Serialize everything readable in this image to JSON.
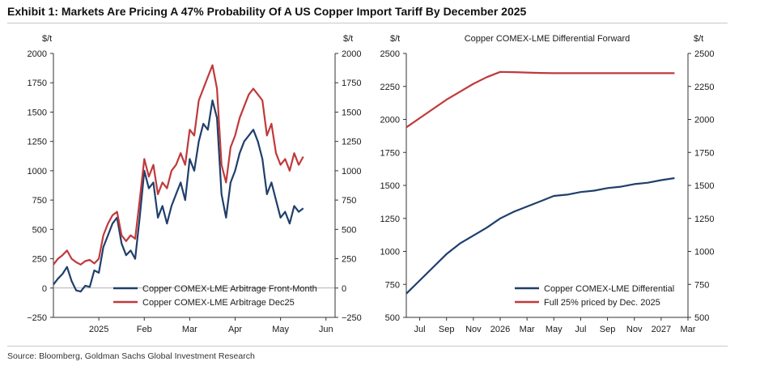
{
  "header": {
    "title": "Exhibit 1: Markets Are Pricing A 47% Probability Of A US Copper Import Tariff By December 2025"
  },
  "footer": {
    "source": "Source: Bloomberg, Goldman Sachs Global Investment Research"
  },
  "chart_data": [
    {
      "type": "line",
      "title": "",
      "ylabel_left": "$/t",
      "ylabel_right": "$/t",
      "ylim": [
        -250,
        2000
      ],
      "yticks": [
        -250,
        0,
        250,
        500,
        750,
        1000,
        1250,
        1500,
        1750,
        2000
      ],
      "xticks": [
        "2025",
        "Feb",
        "Mar",
        "Apr",
        "May",
        "Jun"
      ],
      "x_range": [
        0,
        6.2
      ],
      "xtick_positions": [
        1,
        2,
        3,
        4,
        5,
        6
      ],
      "grid": false,
      "legend_position": "bottom-right",
      "series": [
        {
          "name": "Copper COMEX-LME Arbitrage Front-Month",
          "color": "#1f3f6b",
          "x": [
            0,
            0.1,
            0.2,
            0.3,
            0.4,
            0.5,
            0.6,
            0.7,
            0.8,
            0.9,
            1.0,
            1.1,
            1.2,
            1.3,
            1.4,
            1.5,
            1.6,
            1.7,
            1.8,
            1.9,
            2.0,
            2.1,
            2.2,
            2.3,
            2.4,
            2.5,
            2.6,
            2.7,
            2.8,
            2.9,
            3.0,
            3.1,
            3.2,
            3.3,
            3.4,
            3.5,
            3.6,
            3.7,
            3.8,
            3.9,
            4.0,
            4.1,
            4.2,
            4.3,
            4.4,
            4.5,
            4.6,
            4.7,
            4.8,
            4.9,
            5.0,
            5.1,
            5.2,
            5.3,
            5.4,
            5.5
          ],
          "y": [
            30,
            80,
            120,
            180,
            60,
            -20,
            -30,
            20,
            10,
            150,
            130,
            350,
            450,
            550,
            600,
            380,
            280,
            320,
            250,
            600,
            1000,
            850,
            900,
            600,
            700,
            550,
            700,
            800,
            900,
            750,
            1100,
            1000,
            1250,
            1400,
            1350,
            1600,
            1450,
            800,
            600,
            900,
            1000,
            1150,
            1250,
            1300,
            1350,
            1250,
            1100,
            800,
            900,
            750,
            600,
            650,
            550,
            700,
            650,
            680
          ]
        },
        {
          "name": "Copper COMEX-LME Arbitrage Dec25",
          "color": "#c0393b",
          "x": [
            0,
            0.1,
            0.2,
            0.3,
            0.4,
            0.5,
            0.6,
            0.7,
            0.8,
            0.9,
            1.0,
            1.1,
            1.2,
            1.3,
            1.4,
            1.5,
            1.6,
            1.7,
            1.8,
            1.9,
            2.0,
            2.1,
            2.2,
            2.3,
            2.4,
            2.5,
            2.6,
            2.7,
            2.8,
            2.9,
            3.0,
            3.1,
            3.2,
            3.3,
            3.4,
            3.5,
            3.6,
            3.7,
            3.8,
            3.9,
            4.0,
            4.1,
            4.2,
            4.3,
            4.4,
            4.5,
            4.6,
            4.7,
            4.8,
            4.9,
            5.0,
            5.1,
            5.2,
            5.3,
            5.4,
            5.5
          ],
          "y": [
            200,
            250,
            280,
            320,
            250,
            220,
            200,
            230,
            240,
            210,
            250,
            450,
            550,
            620,
            650,
            450,
            400,
            450,
            420,
            750,
            1100,
            950,
            1050,
            800,
            900,
            850,
            1000,
            1050,
            1150,
            1050,
            1350,
            1300,
            1600,
            1700,
            1800,
            1900,
            1700,
            1050,
            900,
            1200,
            1300,
            1450,
            1550,
            1650,
            1700,
            1650,
            1600,
            1300,
            1400,
            1150,
            1050,
            1100,
            1000,
            1150,
            1050,
            1120
          ]
        }
      ]
    },
    {
      "type": "line",
      "title": "Copper COMEX-LME Differential Forward",
      "ylabel_left": "$/t",
      "ylabel_right": "$/t",
      "ylim": [
        500,
        2500
      ],
      "yticks": [
        500,
        750,
        1000,
        1250,
        1500,
        1750,
        2000,
        2250,
        2500
      ],
      "xticks": [
        "Jul",
        "Sep",
        "Nov",
        "2026",
        "Mar",
        "May",
        "Jul",
        "Sep",
        "Nov",
        "2027",
        "Mar"
      ],
      "x_range": [
        0,
        21
      ],
      "xtick_positions": [
        1,
        3,
        5,
        7,
        9,
        11,
        13,
        15,
        17,
        19,
        21
      ],
      "grid": false,
      "legend_position": "bottom-right",
      "series": [
        {
          "name": "Copper COMEX-LME Differential",
          "color": "#1f3f6b",
          "x": [
            0,
            1,
            2,
            3,
            4,
            5,
            6,
            7,
            8,
            9,
            10,
            11,
            12,
            13,
            14,
            15,
            16,
            17,
            18,
            19,
            20
          ],
          "y": [
            680,
            780,
            880,
            980,
            1060,
            1120,
            1180,
            1250,
            1300,
            1340,
            1380,
            1420,
            1430,
            1450,
            1460,
            1480,
            1490,
            1510,
            1520,
            1540,
            1555
          ]
        },
        {
          "name": "Full 25% priced by Dec. 2025",
          "color": "#c0393b",
          "x": [
            0,
            1,
            2,
            3,
            4,
            5,
            6,
            7,
            8,
            9,
            10,
            11,
            12,
            13,
            14,
            15,
            16,
            17,
            18,
            19,
            20
          ],
          "y": [
            1940,
            2010,
            2080,
            2150,
            2210,
            2270,
            2320,
            2360,
            2358,
            2355,
            2352,
            2350,
            2350,
            2350,
            2350,
            2350,
            2350,
            2350,
            2350,
            2350,
            2350
          ]
        }
      ]
    }
  ]
}
